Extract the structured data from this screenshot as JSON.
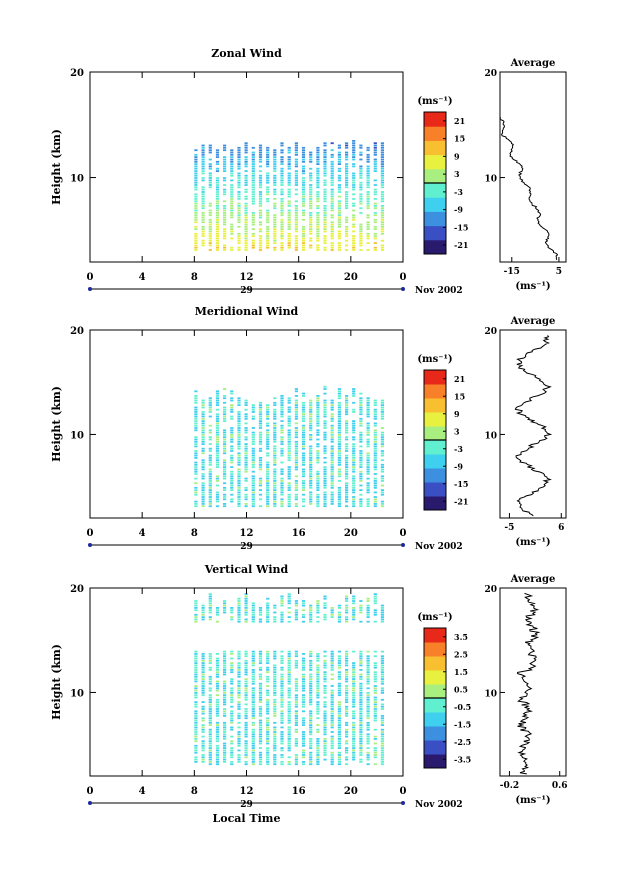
{
  "chart_data": [
    {
      "type": "heatmap",
      "title": "Zonal Wind",
      "ylabel": "Height (km)",
      "x_ticks": [
        "0",
        "4",
        "8",
        "12",
        "16",
        "20",
        "0"
      ],
      "xlim": [
        0,
        24
      ],
      "y_ticks": [
        "20",
        "10"
      ],
      "ylim": [
        2,
        20
      ],
      "date_axis": {
        "day_label": "29",
        "month_label": "Nov 2002"
      },
      "colorbar": {
        "unit": "(ms⁻¹)",
        "ticks": [
          "21",
          "15",
          "9",
          "3",
          "-3",
          "-9",
          "-15",
          "-21"
        ],
        "range": [
          -24,
          24
        ]
      },
      "profile": {
        "title": "Average",
        "unit": "(ms⁻¹)",
        "x_ticks": [
          "-15",
          "5"
        ],
        "xlim": [
          -20,
          8
        ]
      }
    },
    {
      "type": "heatmap",
      "title": "Meridional Wind",
      "ylabel": "Height (km)",
      "x_ticks": [
        "0",
        "4",
        "8",
        "12",
        "16",
        "20",
        "0"
      ],
      "xlim": [
        0,
        24
      ],
      "y_ticks": [
        "20",
        "10"
      ],
      "ylim": [
        2,
        20
      ],
      "date_axis": {
        "day_label": "29",
        "month_label": "Nov 2002"
      },
      "colorbar": {
        "unit": "(ms⁻¹)",
        "ticks": [
          "21",
          "15",
          "9",
          "3",
          "-3",
          "-9",
          "-15",
          "-21"
        ],
        "range": [
          -24,
          24
        ]
      },
      "profile": {
        "title": "Average",
        "unit": "(ms⁻¹)",
        "x_ticks": [
          "-5",
          "6"
        ],
        "xlim": [
          -7,
          7
        ]
      }
    },
    {
      "type": "heatmap",
      "title": "Vertical Wind",
      "ylabel": "Height (km)",
      "xlabel": "Local Time",
      "x_ticks": [
        "0",
        "4",
        "8",
        "12",
        "16",
        "20",
        "0"
      ],
      "xlim": [
        0,
        24
      ],
      "y_ticks": [
        "20",
        "10"
      ],
      "ylim": [
        2,
        20
      ],
      "date_axis": {
        "day_label": "29",
        "month_label": "Nov 2002"
      },
      "colorbar": {
        "unit": "(ms⁻¹)",
        "ticks": [
          "3.5",
          "2.5",
          "1.5",
          "0.5",
          "-0.5",
          "-1.5",
          "-2.5",
          "-3.5"
        ],
        "range": [
          -4,
          4
        ]
      },
      "profile": {
        "title": "Average",
        "unit": "(ms⁻¹)",
        "x_ticks": [
          "-0.2",
          "0.6"
        ],
        "xlim": [
          -0.35,
          0.7
        ]
      }
    }
  ],
  "colorscale": [
    "#2a1a6e",
    "#3b4fc4",
    "#3d8fe0",
    "#3fd0f0",
    "#60f0d0",
    "#a8ef80",
    "#e8f040",
    "#f8c030",
    "#f88028",
    "#e82818"
  ]
}
